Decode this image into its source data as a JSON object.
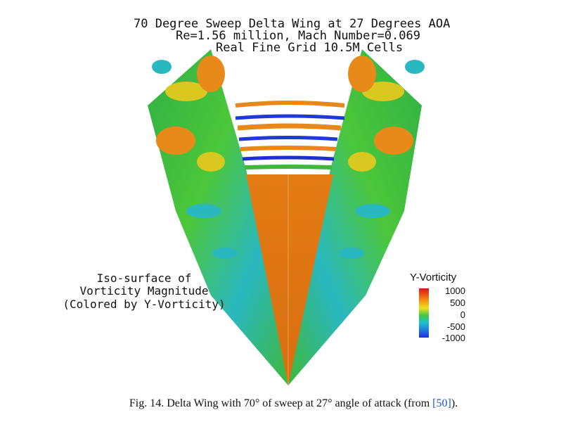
{
  "figure": {
    "title_lines": [
      "70 Degree Sweep Delta Wing at 27 Degrees AOA",
      "Re=1.56 million, Mach Number=0.069",
      "Real Fine Grid 10.5M Cells"
    ],
    "annotation_lines": [
      "Iso-surface of",
      "Vorticity Magnitude",
      "(Colored by Y-Vorticity)"
    ],
    "legend": {
      "title": "Y-Vorticity",
      "ticks": [
        "1000",
        "500",
        "0",
        "-500",
        "-1000"
      ]
    },
    "colors": {
      "wing_surface": "#e27a12",
      "vortex_green": "#3fb83a",
      "vortex_cyan": "#28b8c8",
      "vortex_orange": "#e88a1a",
      "vortex_blue": "#2038d8",
      "vortex_yellow": "#d8d820"
    }
  },
  "caption": {
    "text": "Fig. 14. Delta Wing with 70° of sweep at 27° angle of attack (from ",
    "ref": "[50]",
    "tail": ")."
  }
}
